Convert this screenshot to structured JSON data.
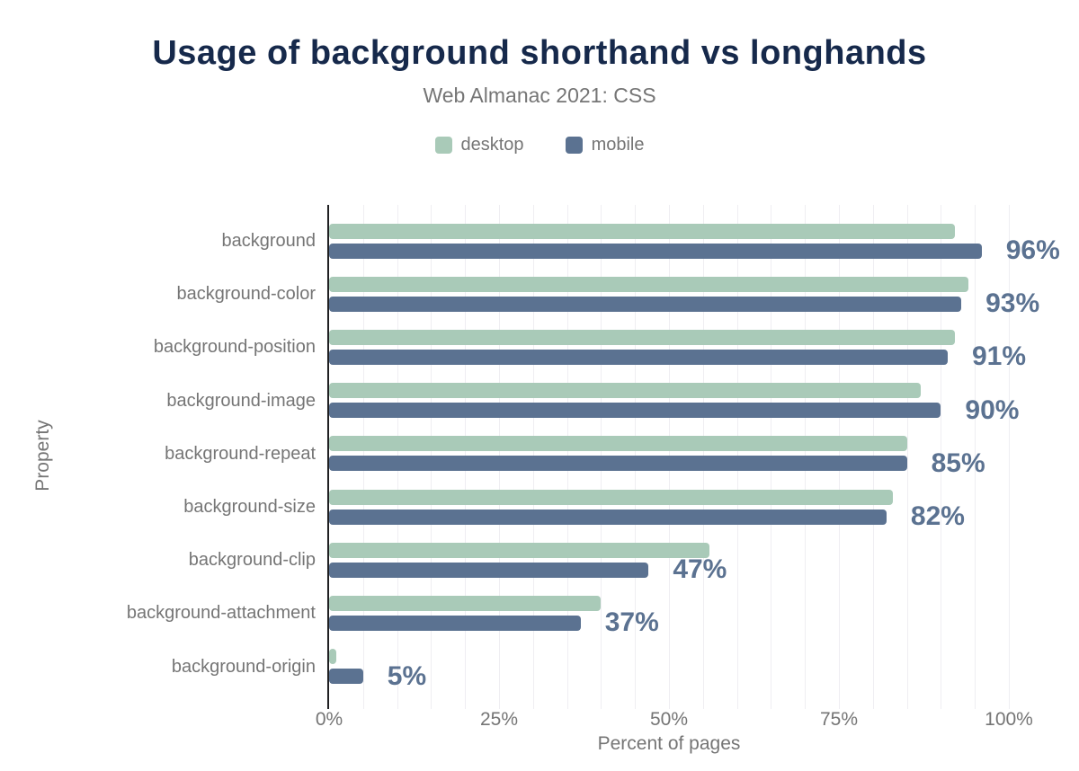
{
  "chart": {
    "title": "Usage of background shorthand vs longhands",
    "subtitle": "Web Almanac 2021: CSS"
  },
  "chart_data": {
    "type": "bar",
    "orientation": "horizontal",
    "title": "Usage of background shorthand vs longhands",
    "subtitle": "Web Almanac 2021: CSS",
    "xlabel": "Percent of pages",
    "ylabel": "Property",
    "xlim": [
      0,
      100
    ],
    "x_ticks": [
      {
        "value": 0,
        "label": "0%"
      },
      {
        "value": 25,
        "label": "25%"
      },
      {
        "value": 50,
        "label": "50%"
      },
      {
        "value": 75,
        "label": "75%"
      },
      {
        "value": 100,
        "label": "100%"
      }
    ],
    "grid": "vertical minor gridlines every 5%",
    "legend_position": "top-center",
    "categories": [
      "background",
      "background-color",
      "background-position",
      "background-image",
      "background-repeat",
      "background-size",
      "background-clip",
      "background-attachment",
      "background-origin"
    ],
    "series": [
      {
        "name": "desktop",
        "color": "#a9cab8",
        "values": [
          92,
          94,
          92,
          87,
          85,
          83,
          56,
          40,
          1
        ]
      },
      {
        "name": "mobile",
        "color": "#5b7291",
        "values": [
          96,
          93,
          91,
          90,
          85,
          82,
          47,
          37,
          5
        ]
      }
    ],
    "value_labels": [
      "96%",
      "93%",
      "91%",
      "90%",
      "85%",
      "82%",
      "47%",
      "37%",
      "5%"
    ],
    "value_labels_source": "mobile series"
  },
  "colors": {
    "title": "#16294b",
    "text_gray": "#757575",
    "desktop_bar": "#a9cab8",
    "mobile_bar": "#5b7291",
    "value_label": "#5b7291",
    "axis_line": "#202022",
    "gridline": "#efeef2",
    "background": "#ffffff"
  }
}
